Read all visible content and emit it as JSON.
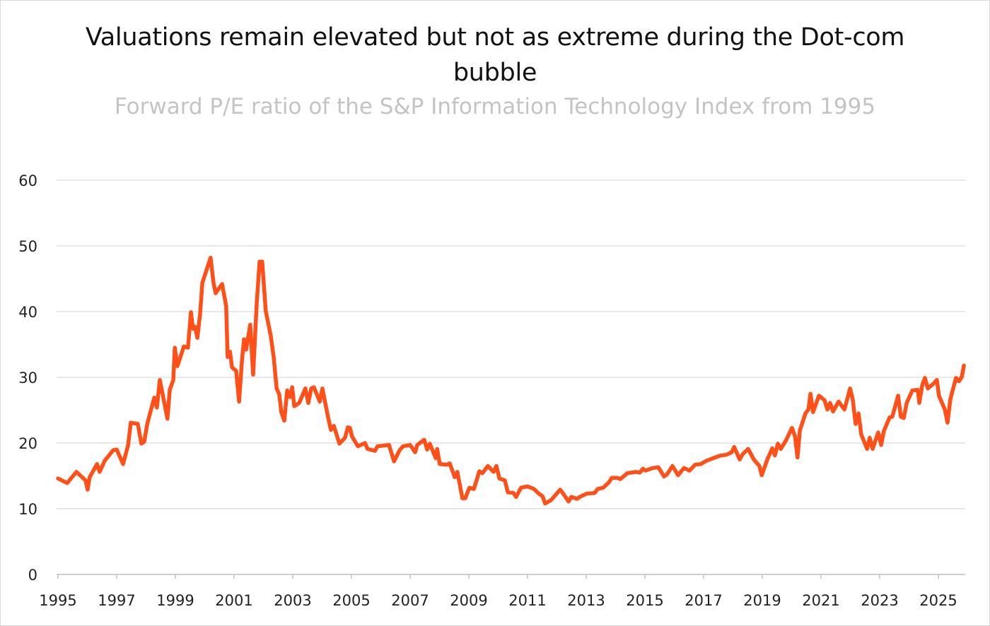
{
  "chart_data": {
    "type": "line",
    "title": "Valuations remain elevated but not as extreme during the Dot-com bubble",
    "subtitle": "Forward P/E ratio of the S&P Information Technology Index from 1995",
    "xlabel": "",
    "ylabel": "",
    "xlim": [
      1995,
      2026
    ],
    "ylim": [
      0,
      60
    ],
    "grid": true,
    "x_ticks": [
      "1995",
      "1997",
      "1999",
      "2001",
      "2003",
      "2005",
      "2007",
      "2009",
      "2011",
      "2013",
      "2015",
      "2017",
      "2019",
      "2021",
      "2023",
      "2025"
    ],
    "y_ticks": [
      "0",
      "10",
      "20",
      "30",
      "40",
      "50",
      "60"
    ],
    "line_color": "#FF5019",
    "series": [
      {
        "x": [
          1995.0,
          1995.31,
          1995.63,
          1995.94,
          1996.01,
          1996.08,
          1996.33,
          1996.42,
          1996.59,
          1996.88,
          1997.0,
          1997.22,
          1997.39,
          1997.48,
          1997.72,
          1997.84,
          1997.94,
          1998.04,
          1998.28,
          1998.37,
          1998.47,
          1998.73,
          1998.81,
          1998.93,
          1998.98,
          1999.07,
          1999.29,
          1999.43,
          1999.53,
          1999.6,
          1999.67,
          1999.75,
          1999.84,
          1999.92,
          2000.06,
          2000.2,
          2000.3,
          2000.37,
          2000.59,
          2000.73,
          2000.78,
          2000.86,
          2000.93,
          2001.07,
          2001.17,
          2001.27,
          2001.34,
          2001.41,
          2001.55,
          2001.65,
          2001.77,
          2001.87,
          2001.96,
          2002.08,
          2002.25,
          2002.35,
          2002.45,
          2002.54,
          2002.61,
          2002.71,
          2002.81,
          2002.9,
          2002.98,
          2003.05,
          2003.22,
          2003.43,
          2003.53,
          2003.63,
          2003.72,
          2003.92,
          2004.01,
          2004.2,
          2004.3,
          2004.4,
          2004.59,
          2004.78,
          2004.88,
          2004.95,
          2005.02,
          2005.22,
          2005.46,
          2005.55,
          2005.8,
          2005.89,
          2006.28,
          2006.45,
          2006.64,
          2006.76,
          2007.0,
          2007.17,
          2007.24,
          2007.48,
          2007.58,
          2007.67,
          2007.87,
          2007.92,
          2008.01,
          2008.25,
          2008.35,
          2008.52,
          2008.61,
          2008.71,
          2008.78,
          2008.88,
          2009.02,
          2009.17,
          2009.36,
          2009.46,
          2009.65,
          2009.84,
          2009.94,
          2010.04,
          2010.23,
          2010.33,
          2010.52,
          2010.61,
          2010.78,
          2011.0,
          2011.22,
          2011.41,
          2011.51,
          2011.6,
          2011.8,
          2012.11,
          2012.2,
          2012.4,
          2012.49,
          2012.69,
          2012.78,
          2013.02,
          2013.29,
          2013.39,
          2013.58,
          2013.77,
          2013.87,
          2014.06,
          2014.16,
          2014.4,
          2014.69,
          2014.83,
          2014.93,
          2015.02,
          2015.27,
          2015.46,
          2015.65,
          2015.75,
          2015.94,
          2016.13,
          2016.33,
          2016.52,
          2016.71,
          2016.9,
          2017.1,
          2017.39,
          2017.58,
          2017.77,
          2017.96,
          2018.04,
          2018.23,
          2018.33,
          2018.52,
          2018.71,
          2018.9,
          2018.98,
          2019.17,
          2019.34,
          2019.43,
          2019.53,
          2019.63,
          2019.82,
          2020.01,
          2020.11,
          2020.2,
          2020.28,
          2020.47,
          2020.57,
          2020.64,
          2020.73,
          2020.93,
          2021.12,
          2021.22,
          2021.31,
          2021.41,
          2021.6,
          2021.8,
          2021.99,
          2022.08,
          2022.18,
          2022.28,
          2022.37,
          2022.57,
          2022.66,
          2022.76,
          2022.95,
          2023.05,
          2023.14,
          2023.34,
          2023.43,
          2023.63,
          2023.72,
          2023.82,
          2023.92,
          2024.11,
          2024.3,
          2024.35,
          2024.45,
          2024.54,
          2024.64,
          2024.83,
          2024.95,
          2025.02,
          2025.22,
          2025.31,
          2025.41,
          2025.6,
          2025.7,
          2025.8,
          2025.87
        ],
        "y": [
          14.6,
          13.9,
          15.6,
          14.3,
          12.9,
          14.8,
          16.8,
          15.6,
          17.3,
          18.9,
          19.0,
          16.8,
          19.7,
          23.1,
          22.9,
          19.9,
          20.2,
          22.9,
          26.9,
          25.4,
          29.6,
          23.7,
          28.1,
          29.6,
          34.5,
          31.7,
          34.7,
          34.5,
          39.9,
          37.4,
          37.7,
          36.0,
          39.6,
          44.4,
          46.3,
          48.2,
          44.4,
          42.8,
          44.2,
          40.9,
          33.1,
          33.9,
          31.5,
          31.0,
          26.3,
          32.6,
          35.8,
          34.2,
          38.0,
          30.4,
          41.2,
          47.6,
          47.6,
          40.1,
          36.3,
          33.1,
          28.3,
          27.4,
          24.7,
          23.4,
          28.0,
          27.0,
          28.5,
          25.6,
          26.1,
          28.3,
          26.1,
          28.3,
          28.5,
          26.3,
          28.3,
          24.0,
          22.0,
          22.6,
          19.9,
          20.8,
          22.4,
          22.3,
          21.0,
          19.5,
          20.0,
          19.1,
          18.8,
          19.5,
          19.7,
          17.2,
          18.9,
          19.5,
          19.7,
          18.6,
          19.7,
          20.5,
          19.0,
          19.9,
          17.7,
          19.1,
          16.8,
          16.7,
          16.9,
          14.8,
          15.6,
          13.2,
          11.6,
          11.6,
          13.2,
          13.0,
          15.7,
          15.4,
          16.5,
          15.6,
          16.5,
          14.6,
          14.3,
          12.5,
          12.4,
          11.8,
          13.2,
          13.4,
          13.0,
          12.2,
          11.9,
          10.8,
          11.3,
          12.9,
          12.4,
          11.1,
          11.8,
          11.5,
          11.8,
          12.3,
          12.4,
          13.0,
          13.2,
          14.0,
          14.7,
          14.7,
          14.5,
          15.4,
          15.6,
          15.5,
          16.1,
          15.8,
          16.2,
          16.3,
          14.9,
          15.2,
          16.5,
          15.1,
          16.2,
          15.8,
          16.7,
          16.8,
          17.3,
          17.8,
          18.1,
          18.2,
          18.6,
          19.4,
          17.5,
          18.3,
          19.1,
          17.5,
          16.5,
          15.1,
          17.5,
          19.2,
          18.1,
          19.9,
          19.1,
          20.5,
          22.3,
          21.1,
          17.8,
          21.9,
          24.5,
          25.1,
          27.5,
          24.7,
          27.2,
          26.5,
          25.1,
          26.1,
          24.8,
          26.3,
          25.1,
          28.3,
          26.7,
          22.9,
          24.5,
          21.3,
          19.1,
          20.8,
          19.1,
          21.6,
          19.7,
          21.8,
          23.9,
          24.0,
          27.2,
          24.0,
          23.8,
          26.1,
          28.0,
          28.1,
          26.1,
          28.8,
          29.9,
          28.3,
          29.0,
          29.6,
          27.2,
          25.1,
          23.1,
          26.7,
          29.9,
          29.4,
          30.1,
          31.8
        ]
      }
    ]
  }
}
